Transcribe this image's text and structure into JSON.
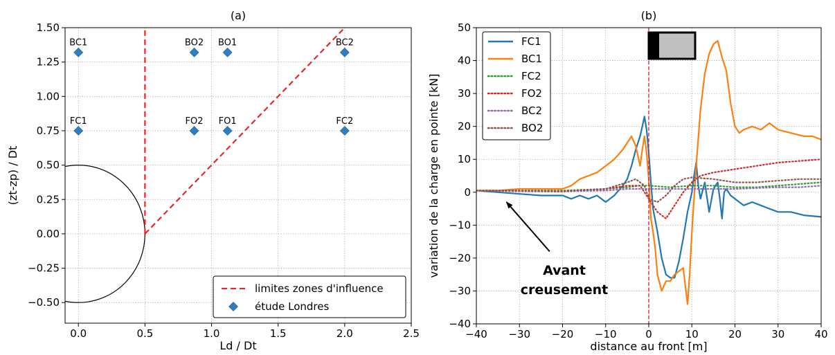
{
  "chart_data": [
    {
      "type": "scatter",
      "title": "(a)",
      "xlabel": "Ld / Dt",
      "ylabel": "(zt-zp) / Dt",
      "xlim": [
        -0.1,
        2.5
      ],
      "ylim": [
        -0.65,
        1.5
      ],
      "xticks": [
        0.0,
        0.5,
        1.0,
        1.5,
        2.0,
        2.5
      ],
      "xtick_labels": [
        "0.0",
        "0.5",
        "1.0",
        "1.5",
        "2.0",
        "2.5"
      ],
      "yticks": [
        -0.5,
        -0.25,
        0.0,
        0.25,
        0.5,
        0.75,
        1.0,
        1.25,
        1.5
      ],
      "ytick_labels": [
        "−0.50",
        "−0.25",
        "0.00",
        "0.25",
        "0.50",
        "0.75",
        "1.00",
        "1.25",
        "1.50"
      ],
      "grid": true,
      "legend_position": "lower-right",
      "points": [
        {
          "label": "BC1",
          "x": 0.0,
          "y": 1.32
        },
        {
          "label": "BO2",
          "x": 0.87,
          "y": 1.32
        },
        {
          "label": "BO1",
          "x": 1.12,
          "y": 1.32
        },
        {
          "label": "BC2",
          "x": 2.0,
          "y": 1.32
        },
        {
          "label": "FC1",
          "x": 0.0,
          "y": 0.75
        },
        {
          "label": "FO2",
          "x": 0.87,
          "y": 0.75
        },
        {
          "label": "FO1",
          "x": 1.12,
          "y": 0.75
        },
        {
          "label": "FC2",
          "x": 2.0,
          "y": 0.75
        }
      ],
      "influence_lines": {
        "name": "limites zones d'influence",
        "color": "#e8262a",
        "lines": [
          [
            [
              0.5,
              0.0
            ],
            [
              0.5,
              1.5
            ]
          ],
          [
            [
              0.5,
              0.0
            ],
            [
              2.0,
              1.5
            ]
          ]
        ]
      },
      "points_series_name": "étude Londres",
      "points_color": "#2f7ec1",
      "tunnel_circle": {
        "center": [
          0.0,
          0.0
        ],
        "radius": 0.5
      }
    },
    {
      "type": "line",
      "title": "(b)",
      "xlabel": "distance au front [m]",
      "ylabel": "variation de la charge en pointe [kN]",
      "xlim": [
        -40,
        40
      ],
      "ylim": [
        -40,
        50
      ],
      "xticks": [
        -40,
        -30,
        -20,
        -10,
        0,
        10,
        20,
        30,
        40
      ],
      "xtick_labels": [
        "−40",
        "−30",
        "−20",
        "−10",
        "0",
        "10",
        "20",
        "30",
        "40"
      ],
      "yticks": [
        -40,
        -30,
        -20,
        -10,
        0,
        10,
        20,
        30,
        40,
        50
      ],
      "ytick_labels": [
        "−40",
        "−30",
        "−20",
        "−10",
        "0",
        "10",
        "20",
        "30",
        "40",
        "50"
      ],
      "grid": true,
      "legend_position": "top-left",
      "front_line_x": 0,
      "annotation": {
        "lines": [
          "Avant",
          "creusement"
        ],
        "arrow_from": [
          -23,
          -18
        ],
        "arrow_to": [
          -33,
          -3
        ]
      },
      "series": [
        {
          "name": "FC1",
          "color": "#1f77b4",
          "style": "solid",
          "points": [
            [
              -40,
              0.5
            ],
            [
              -35,
              0
            ],
            [
              -30,
              -0.5
            ],
            [
              -25,
              -1
            ],
            [
              -20,
              -1
            ],
            [
              -18,
              -2
            ],
            [
              -16,
              -1
            ],
            [
              -14,
              -2
            ],
            [
              -12,
              -1
            ],
            [
              -10,
              -3
            ],
            [
              -8,
              -1
            ],
            [
              -6,
              2
            ],
            [
              -5,
              4
            ],
            [
              -4,
              8
            ],
            [
              -3,
              13
            ],
            [
              -2,
              17
            ],
            [
              -1.5,
              20
            ],
            [
              -1,
              23
            ],
            [
              -0.5,
              19
            ],
            [
              0,
              12
            ],
            [
              0.5,
              3
            ],
            [
              1,
              -5
            ],
            [
              2,
              -12
            ],
            [
              3,
              -20
            ],
            [
              4,
              -25
            ],
            [
              5,
              -26
            ],
            [
              6,
              -26
            ],
            [
              7,
              -21
            ],
            [
              8,
              -14
            ],
            [
              9,
              -6
            ],
            [
              10,
              0
            ],
            [
              10.5,
              5
            ],
            [
              11,
              9
            ],
            [
              11.5,
              2
            ],
            [
              12,
              -2
            ],
            [
              13,
              3
            ],
            [
              14,
              -6
            ],
            [
              15,
              1
            ],
            [
              16,
              3
            ],
            [
              16.5,
              -2
            ],
            [
              17,
              -8
            ],
            [
              17.5,
              0
            ],
            [
              18,
              1
            ],
            [
              19,
              -1
            ],
            [
              20,
              -2
            ],
            [
              21,
              -3
            ],
            [
              22,
              -4
            ],
            [
              24,
              -3
            ],
            [
              26,
              -4
            ],
            [
              28,
              -5
            ],
            [
              30,
              -6
            ],
            [
              33,
              -6
            ],
            [
              36,
              -7
            ],
            [
              40,
              -7.5
            ]
          ]
        },
        {
          "name": "BC1",
          "color": "#ff7f0e",
          "style": "solid",
          "points": [
            [
              -40,
              0.5
            ],
            [
              -35,
              0.5
            ],
            [
              -30,
              1
            ],
            [
              -25,
              1
            ],
            [
              -20,
              1
            ],
            [
              -18,
              2
            ],
            [
              -16,
              4
            ],
            [
              -14,
              5
            ],
            [
              -12,
              6
            ],
            [
              -10,
              8
            ],
            [
              -8,
              10
            ],
            [
              -6,
              13
            ],
            [
              -5,
              15
            ],
            [
              -4,
              17
            ],
            [
              -3,
              14
            ],
            [
              -2,
              8
            ],
            [
              -1.5,
              13
            ],
            [
              -1,
              17
            ],
            [
              -0.5,
              12
            ],
            [
              0,
              4
            ],
            [
              0.5,
              -8
            ],
            [
              1,
              -12
            ],
            [
              1.5,
              -17
            ],
            [
              2,
              -25
            ],
            [
              3,
              -30
            ],
            [
              4,
              -27
            ],
            [
              5,
              -27
            ],
            [
              6,
              -25
            ],
            [
              7,
              -24
            ],
            [
              8,
              -23
            ],
            [
              9,
              -34
            ],
            [
              9.5,
              -25
            ],
            [
              10,
              -12
            ],
            [
              11,
              8
            ],
            [
              12,
              25
            ],
            [
              13,
              36
            ],
            [
              14,
              42
            ],
            [
              15,
              45
            ],
            [
              16,
              46
            ],
            [
              17,
              41
            ],
            [
              18,
              37
            ],
            [
              19,
              27
            ],
            [
              20,
              20
            ],
            [
              21,
              18
            ],
            [
              22,
              19
            ],
            [
              24,
              20
            ],
            [
              26,
              19
            ],
            [
              27,
              20
            ],
            [
              28,
              21
            ],
            [
              30,
              19
            ],
            [
              33,
              18
            ],
            [
              36,
              17
            ],
            [
              38,
              17
            ],
            [
              40,
              16
            ]
          ]
        },
        {
          "name": "FC2",
          "color": "#2ca02c",
          "style": "dotted",
          "points": [
            [
              -40,
              0.5
            ],
            [
              -30,
              0.5
            ],
            [
              -20,
              0.5
            ],
            [
              -10,
              1
            ],
            [
              -5,
              1.5
            ],
            [
              -2,
              2
            ],
            [
              0,
              2
            ],
            [
              5,
              1.5
            ],
            [
              10,
              2
            ],
            [
              15,
              2
            ],
            [
              20,
              1.5
            ],
            [
              25,
              1.5
            ],
            [
              30,
              2
            ],
            [
              35,
              2.5
            ],
            [
              40,
              3
            ]
          ]
        },
        {
          "name": "FO2",
          "color": "#d62728",
          "style": "dotted",
          "points": [
            [
              -40,
              0.5
            ],
            [
              -30,
              0.3
            ],
            [
              -20,
              0.2
            ],
            [
              -15,
              0.5
            ],
            [
              -10,
              1
            ],
            [
              -5,
              2
            ],
            [
              -2,
              2
            ],
            [
              0,
              -2
            ],
            [
              2,
              -6
            ],
            [
              4,
              -8
            ],
            [
              6,
              -4
            ],
            [
              8,
              0
            ],
            [
              10,
              3
            ],
            [
              12,
              5
            ],
            [
              15,
              6
            ],
            [
              20,
              7
            ],
            [
              25,
              8
            ],
            [
              30,
              9
            ],
            [
              35,
              9.5
            ],
            [
              40,
              10
            ]
          ]
        },
        {
          "name": "BC2",
          "color": "#9467bd",
          "style": "dotted",
          "points": [
            [
              -40,
              0.5
            ],
            [
              -30,
              0.3
            ],
            [
              -20,
              0.3
            ],
            [
              -10,
              0.5
            ],
            [
              -5,
              1
            ],
            [
              0,
              1
            ],
            [
              5,
              1
            ],
            [
              10,
              1
            ],
            [
              15,
              1
            ],
            [
              20,
              1
            ],
            [
              30,
              1.5
            ],
            [
              35,
              1.5
            ],
            [
              40,
              2
            ]
          ]
        },
        {
          "name": "BO2",
          "color": "#8c564b",
          "style": "dotted",
          "points": [
            [
              -40,
              0.5
            ],
            [
              -30,
              0.5
            ],
            [
              -20,
              0.3
            ],
            [
              -10,
              1
            ],
            [
              -5,
              3
            ],
            [
              -3,
              4
            ],
            [
              -1,
              2
            ],
            [
              0,
              -2
            ],
            [
              2,
              -3
            ],
            [
              4,
              -1
            ],
            [
              6,
              2
            ],
            [
              8,
              4
            ],
            [
              10,
              4.5
            ],
            [
              15,
              4
            ],
            [
              20,
              3
            ],
            [
              25,
              3
            ],
            [
              30,
              3.5
            ],
            [
              35,
              4
            ],
            [
              40,
              4
            ]
          ]
        }
      ]
    }
  ]
}
